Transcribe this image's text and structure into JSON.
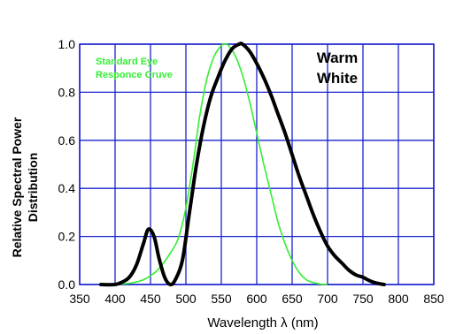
{
  "chart_data": {
    "type": "line",
    "xlabel": "Wavelength  λ (nm)",
    "ylabel_lines": [
      "Relative Spectral Power",
      "Distribution"
    ],
    "xlim": [
      350,
      850
    ],
    "ylim": [
      0,
      1.0
    ],
    "x_ticks": [
      "350",
      "400",
      "450",
      "500",
      "550",
      "600",
      "650",
      "700",
      "750",
      "800",
      "850"
    ],
    "y_ticks": [
      "0.0",
      "0.2",
      "0.4",
      "0.6",
      "0.8",
      "1.0"
    ],
    "grid": true,
    "colors": {
      "grid": "#1a22cc",
      "warm_white": "#000000",
      "eye_response": "#33ee33"
    },
    "series": [
      {
        "name": "Warm White",
        "label_lines": [
          "Warm",
          "White"
        ],
        "x": [
          380,
          400,
          410,
          420,
          430,
          440,
          447,
          455,
          462,
          470,
          478,
          485,
          495,
          505,
          515,
          525,
          535,
          545,
          555,
          565,
          575,
          580,
          590,
          600,
          610,
          620,
          630,
          640,
          650,
          660,
          670,
          680,
          690,
          700,
          710,
          720,
          730,
          740,
          750,
          760,
          770,
          780
        ],
        "values": [
          0.0,
          0.0,
          0.01,
          0.03,
          0.08,
          0.17,
          0.23,
          0.2,
          0.11,
          0.03,
          0.0,
          0.02,
          0.1,
          0.3,
          0.5,
          0.66,
          0.78,
          0.86,
          0.93,
          0.98,
          1.0,
          1.0,
          0.97,
          0.92,
          0.86,
          0.79,
          0.71,
          0.63,
          0.54,
          0.45,
          0.37,
          0.29,
          0.22,
          0.16,
          0.12,
          0.09,
          0.06,
          0.04,
          0.03,
          0.015,
          0.005,
          0.0
        ]
      },
      {
        "name": "Standard Eye Responce Cruve",
        "label_lines": [
          "Standard Eye",
          "Responce Cruve"
        ],
        "x": [
          400,
          420,
          440,
          460,
          480,
          490,
          500,
          510,
          520,
          530,
          540,
          550,
          555,
          560,
          570,
          580,
          590,
          600,
          610,
          620,
          630,
          640,
          650,
          660,
          670,
          680,
          690,
          700
        ],
        "values": [
          0.0,
          0.005,
          0.02,
          0.06,
          0.14,
          0.2,
          0.32,
          0.5,
          0.71,
          0.86,
          0.95,
          0.995,
          1.0,
          0.995,
          0.95,
          0.87,
          0.76,
          0.63,
          0.5,
          0.38,
          0.26,
          0.17,
          0.1,
          0.05,
          0.02,
          0.008,
          0.002,
          0.0
        ]
      }
    ]
  }
}
